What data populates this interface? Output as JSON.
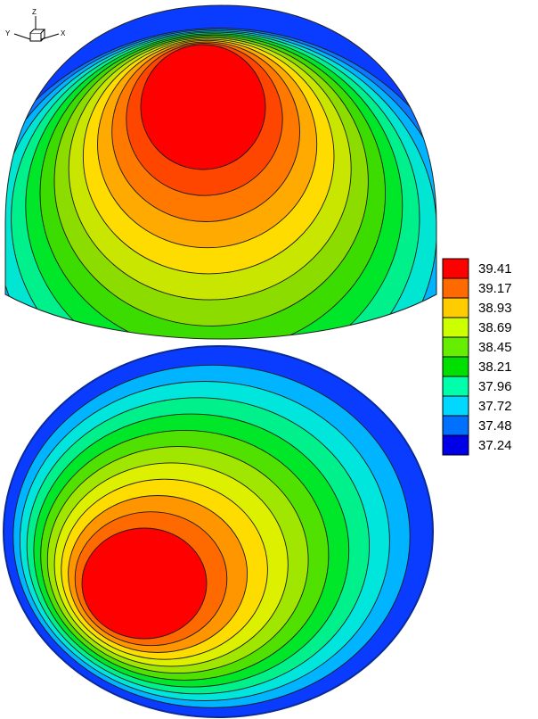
{
  "axis_triad": {
    "z": "Z",
    "y": "Y",
    "x": "X"
  },
  "legend": {
    "levels": [
      {
        "value": "39.41",
        "color": "#ff0000"
      },
      {
        "value": "39.17",
        "color": "#ff6a00"
      },
      {
        "value": "38.93",
        "color": "#ffcc00"
      },
      {
        "value": "38.69",
        "color": "#ccff00"
      },
      {
        "value": "38.45",
        "color": "#66ee00"
      },
      {
        "value": "38.21",
        "color": "#00e000"
      },
      {
        "value": "37.96",
        "color": "#00ffaa"
      },
      {
        "value": "37.72",
        "color": "#00d8ff"
      },
      {
        "value": "37.48",
        "color": "#0070ff"
      },
      {
        "value": "37.24",
        "color": "#0000e8"
      }
    ]
  },
  "contour_colors_top": [
    "#0a3cff",
    "#0a78ff",
    "#00b4ff",
    "#00e6d2",
    "#00f08c",
    "#00e628",
    "#3cdc00",
    "#8cdc00",
    "#c8e600",
    "#ffdc00",
    "#ffaa00",
    "#ff7800",
    "#ff4600",
    "#ff0000"
  ],
  "contour_colors_bottom": [
    "#0a3cff",
    "#00b4ff",
    "#00e6dc",
    "#00f08c",
    "#00e628",
    "#50e100",
    "#a0e600",
    "#dcf000",
    "#ffdc00",
    "#ff9600",
    "#ff6a00",
    "#ff0000"
  ]
}
